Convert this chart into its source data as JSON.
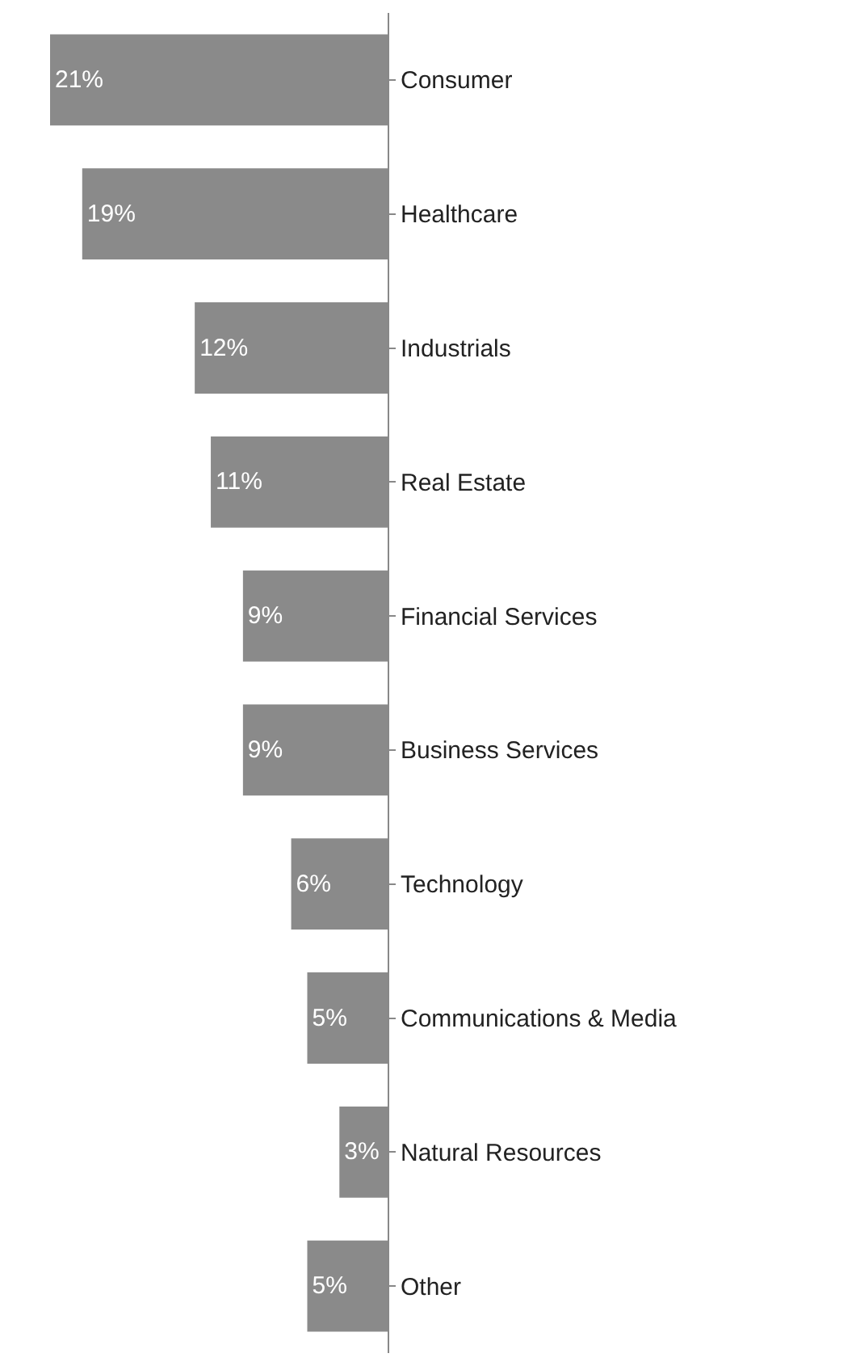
{
  "chart_data": {
    "type": "bar",
    "orientation": "horizontal",
    "categories": [
      "Consumer",
      "Healthcare",
      "Industrials",
      "Real Estate",
      "Financial Services",
      "Business Services",
      "Technology",
      "Communications & Media",
      "Natural Resources",
      "Other"
    ],
    "values": [
      21,
      19,
      12,
      11,
      9,
      9,
      6,
      5,
      3,
      5
    ],
    "value_labels": [
      "21%",
      "19%",
      "12%",
      "11%",
      "9%",
      "9%",
      "6%",
      "5%",
      "3%",
      "5%"
    ],
    "color": "#8a8a8a",
    "tick_labels": "y"
  }
}
